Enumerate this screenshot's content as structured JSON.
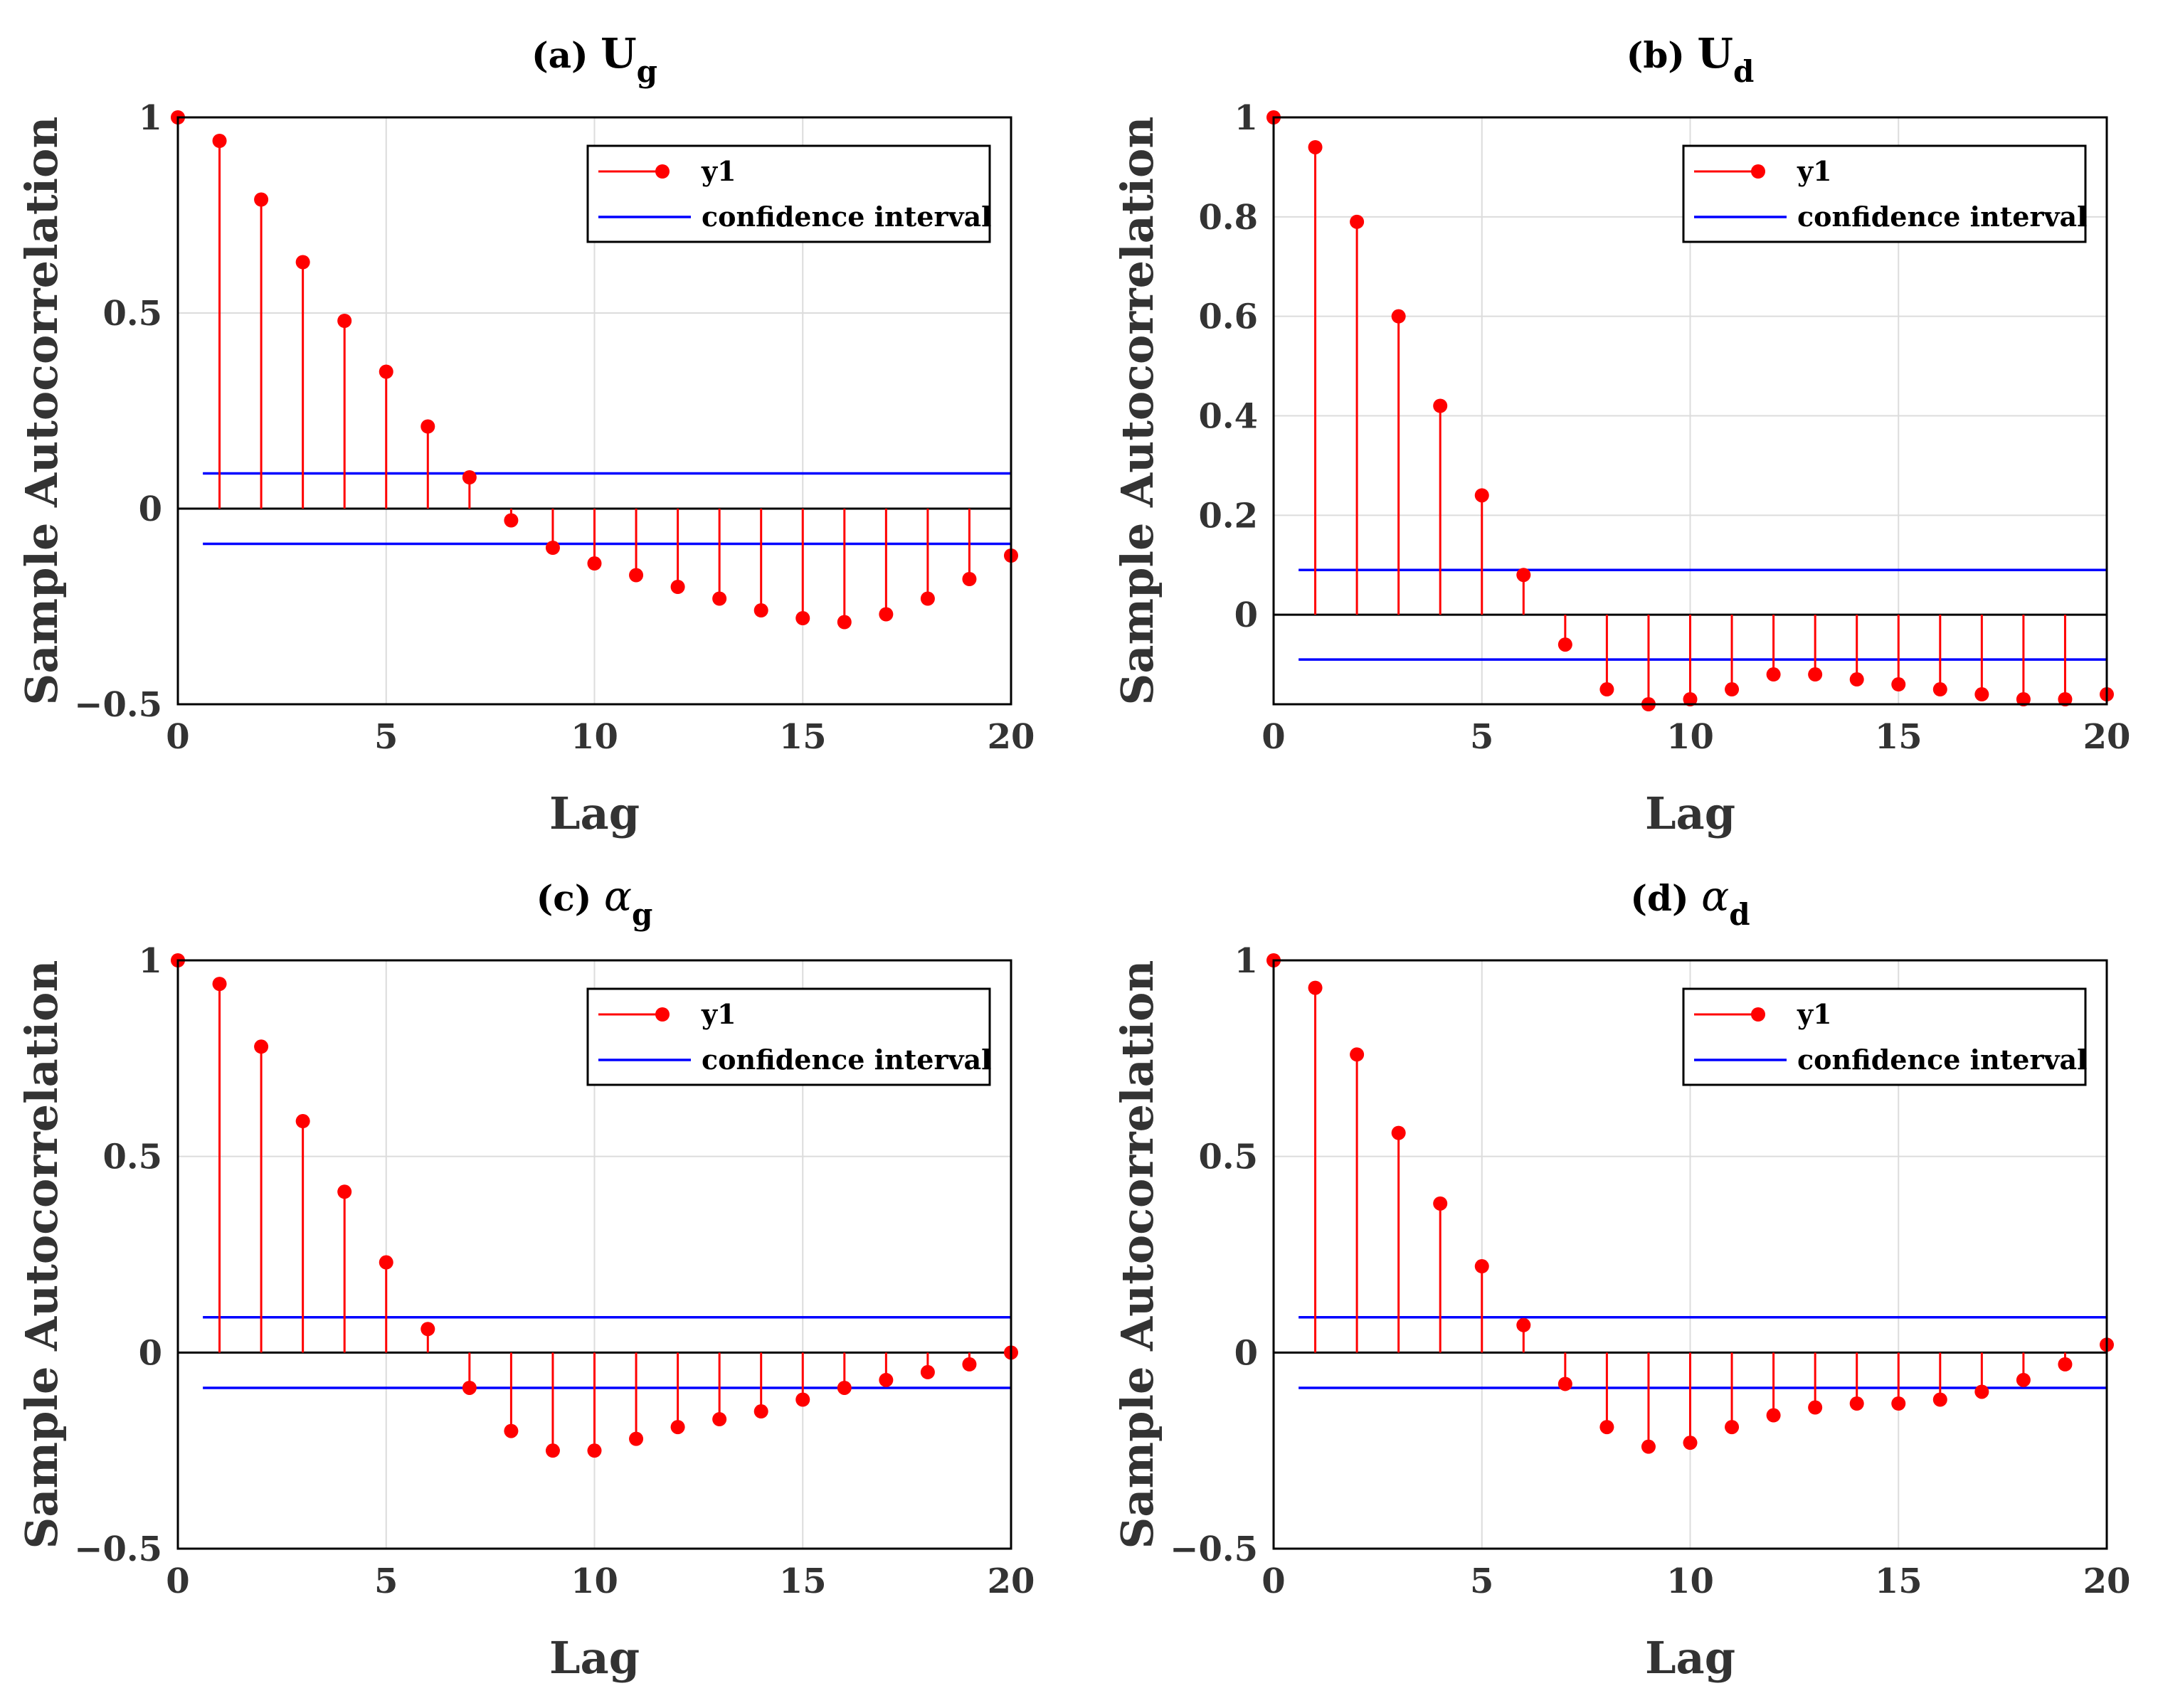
{
  "figure": {
    "colors": {
      "stem": "#ff0000",
      "confidence": "#0000ff",
      "zero_line": "#000000",
      "grid": "#dcdcdc",
      "axis": "#000000"
    }
  },
  "chart_data": [
    {
      "type": "stem",
      "title_prefix": "(a)",
      "title_symbol": "U",
      "title_subscript": "g",
      "xlabel": "Lag",
      "ylabel": "Sample Autocorrelation",
      "xlim": [
        0,
        20
      ],
      "ylim": [
        -0.5,
        1
      ],
      "xticks": [
        0,
        5,
        10,
        15,
        20
      ],
      "xtick_labels": [
        "0",
        "5",
        "10",
        "15",
        "20"
      ],
      "yticks": [
        -0.5,
        0,
        0.5,
        1
      ],
      "ytick_labels": [
        "−0.5",
        "0",
        "0.5",
        "1"
      ],
      "grid": true,
      "confidence_bound": 0.09,
      "legend": {
        "position": "top-right",
        "entries": [
          "y1",
          "confidence interval"
        ]
      },
      "series": [
        {
          "name": "y1",
          "x": [
            0,
            1,
            2,
            3,
            4,
            5,
            6,
            7,
            8,
            9,
            10,
            11,
            12,
            13,
            14,
            15,
            16,
            17,
            18,
            19,
            20
          ],
          "values": [
            1.0,
            0.94,
            0.79,
            0.63,
            0.48,
            0.35,
            0.21,
            0.08,
            -0.03,
            -0.1,
            -0.14,
            -0.17,
            -0.2,
            -0.23,
            -0.26,
            -0.28,
            -0.29,
            -0.27,
            -0.23,
            -0.18,
            -0.12
          ]
        }
      ]
    },
    {
      "type": "stem",
      "title_prefix": "(b)",
      "title_symbol": "U",
      "title_subscript": "d",
      "xlabel": "Lag",
      "ylabel": "Sample Autocorrelation",
      "xlim": [
        0,
        20
      ],
      "ylim": [
        -0.18,
        1
      ],
      "xticks": [
        0,
        5,
        10,
        15,
        20
      ],
      "xtick_labels": [
        "0",
        "5",
        "10",
        "15",
        "20"
      ],
      "yticks": [
        0,
        0.2,
        0.4,
        0.6,
        0.8,
        1
      ],
      "ytick_labels": [
        "0",
        "0.2",
        "0.4",
        "0.6",
        "0.8",
        "1"
      ],
      "grid": true,
      "confidence_bound": 0.09,
      "legend": {
        "position": "top-right",
        "entries": [
          "y1",
          "confidence interval"
        ]
      },
      "series": [
        {
          "name": "y1",
          "x": [
            0,
            1,
            2,
            3,
            4,
            5,
            6,
            7,
            8,
            9,
            10,
            11,
            12,
            13,
            14,
            15,
            16,
            17,
            18,
            19,
            20
          ],
          "values": [
            1.0,
            0.94,
            0.79,
            0.6,
            0.42,
            0.24,
            0.08,
            -0.06,
            -0.15,
            -0.18,
            -0.17,
            -0.15,
            -0.12,
            -0.12,
            -0.13,
            -0.14,
            -0.15,
            -0.16,
            -0.17,
            -0.17,
            -0.16
          ]
        }
      ]
    },
    {
      "type": "stem",
      "title_prefix": "(c)",
      "title_symbol": "α",
      "title_subscript": "g",
      "xlabel": "Lag",
      "ylabel": "Sample Autocorrelation",
      "xlim": [
        0,
        20
      ],
      "ylim": [
        -0.5,
        1
      ],
      "xticks": [
        0,
        5,
        10,
        15,
        20
      ],
      "xtick_labels": [
        "0",
        "5",
        "10",
        "15",
        "20"
      ],
      "yticks": [
        -0.5,
        0,
        0.5,
        1
      ],
      "ytick_labels": [
        "−0.5",
        "0",
        "0.5",
        "1"
      ],
      "grid": true,
      "confidence_bound": 0.09,
      "legend": {
        "position": "top-right",
        "entries": [
          "y1",
          "confidence interval"
        ]
      },
      "series": [
        {
          "name": "y1",
          "x": [
            0,
            1,
            2,
            3,
            4,
            5,
            6,
            7,
            8,
            9,
            10,
            11,
            12,
            13,
            14,
            15,
            16,
            17,
            18,
            19,
            20
          ],
          "values": [
            1.0,
            0.94,
            0.78,
            0.59,
            0.41,
            0.23,
            0.06,
            -0.09,
            -0.2,
            -0.25,
            -0.25,
            -0.22,
            -0.19,
            -0.17,
            -0.15,
            -0.12,
            -0.09,
            -0.07,
            -0.05,
            -0.03,
            0.0
          ]
        }
      ]
    },
    {
      "type": "stem",
      "title_prefix": "(d)",
      "title_symbol": "α",
      "title_subscript": "d",
      "xlabel": "Lag",
      "ylabel": "Sample Autocorrelation",
      "xlim": [
        0,
        20
      ],
      "ylim": [
        -0.5,
        1
      ],
      "xticks": [
        0,
        5,
        10,
        15,
        20
      ],
      "xtick_labels": [
        "0",
        "5",
        "10",
        "15",
        "20"
      ],
      "yticks": [
        -0.5,
        0,
        0.5,
        1
      ],
      "ytick_labels": [
        "−0.5",
        "0",
        "0.5",
        "1"
      ],
      "grid": true,
      "confidence_bound": 0.09,
      "legend": {
        "position": "top-right",
        "entries": [
          "y1",
          "confidence interval"
        ]
      },
      "series": [
        {
          "name": "y1",
          "x": [
            0,
            1,
            2,
            3,
            4,
            5,
            6,
            7,
            8,
            9,
            10,
            11,
            12,
            13,
            14,
            15,
            16,
            17,
            18,
            19,
            20
          ],
          "values": [
            1.0,
            0.93,
            0.76,
            0.56,
            0.38,
            0.22,
            0.07,
            -0.08,
            -0.19,
            -0.24,
            -0.23,
            -0.19,
            -0.16,
            -0.14,
            -0.13,
            -0.13,
            -0.12,
            -0.1,
            -0.07,
            -0.03,
            0.02
          ]
        }
      ]
    }
  ]
}
